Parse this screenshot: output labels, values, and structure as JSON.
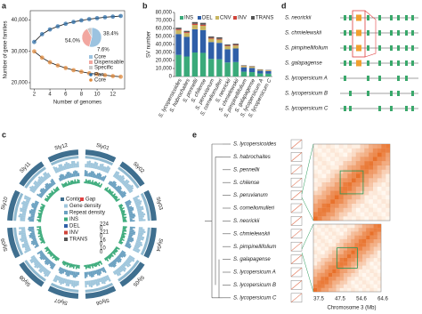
{
  "panel_labels": [
    "a",
    "b",
    "c",
    "d",
    "e"
  ],
  "chart_data": [
    {
      "type": "line",
      "x": [
        2,
        3,
        4,
        5,
        6,
        7,
        8,
        9,
        10,
        11,
        12,
        13
      ],
      "series": [
        {
          "name": "Pan",
          "color": "#2f6fa8",
          "values": [
            33000,
            35500,
            37000,
            38000,
            38800,
            39400,
            39900,
            40300,
            40600,
            40900,
            41100,
            41300
          ]
        },
        {
          "name": "Core",
          "color": "#e08a3c",
          "values": [
            30000,
            28000,
            26500,
            25500,
            24700,
            24000,
            23500,
            23000,
            22700,
            22400,
            22100,
            21900
          ]
        }
      ],
      "xlim": [
        1.5,
        13.5
      ],
      "xticks": [
        2,
        4,
        6,
        8,
        10,
        12
      ],
      "ylim": [
        18000,
        43000
      ],
      "yticks": [
        {
          "value": 20000,
          "label": "20,000"
        },
        {
          "value": 30000,
          "label": "30,000"
        },
        {
          "value": 40000,
          "label": "40,000"
        }
      ],
      "xlabel": "Number of genomes",
      "ylabel": "Number of gene families"
    },
    {
      "type": "pie",
      "categories": [
        "Core",
        "Dispensable",
        "Specific"
      ],
      "values": [
        54.0,
        38.4,
        7.6
      ],
      "value_labels": [
        "54.0%",
        "38.4%",
        "7.6%"
      ],
      "colors": [
        "#9cc3e0",
        "#f2a7a0",
        "#c9c9c9"
      ]
    },
    {
      "type": "bar",
      "stacked": true,
      "categories": [
        "S. lycopersicoides",
        "S. habrochaites",
        "S. pennellii",
        "S. chilense",
        "S. peruvianum",
        "S. corneliomulleri",
        "S. neorickii",
        "S. chmielewskii",
        "S. pimpinellifolium",
        "S. galapagense",
        "S. lycopersicum A",
        "S. lycopersicum C"
      ],
      "series": [
        {
          "name": "INS",
          "color": "#3aaa7a",
          "values": [
            27000,
            25000,
            30000,
            29500,
            22000,
            21500,
            17500,
            18000,
            6000,
            5500,
            3800,
            3500
          ]
        },
        {
          "name": "DEL",
          "color": "#2f5fa8",
          "values": [
            26000,
            24500,
            29000,
            28500,
            21000,
            20500,
            16500,
            17000,
            5500,
            5200,
            3500,
            3200
          ]
        },
        {
          "name": "CNV",
          "color": "#c8b560",
          "values": [
            5000,
            4800,
            5500,
            5400,
            4200,
            4100,
            3800,
            3700,
            1600,
            1500,
            1000,
            900
          ]
        },
        {
          "name": "INV",
          "color": "#d0443a",
          "values": [
            1200,
            1100,
            1400,
            1300,
            1000,
            900,
            800,
            800,
            300,
            300,
            200,
            200
          ]
        },
        {
          "name": "TRANS",
          "color": "#555555",
          "values": [
            1800,
            1600,
            2100,
            2300,
            1800,
            2000,
            1400,
            1500,
            600,
            500,
            500,
            400
          ]
        }
      ],
      "ylim": [
        0,
        80000
      ],
      "yticks": [
        0,
        {
          "value": 10000,
          "label": "10,000"
        },
        {
          "value": 20000,
          "label": "20,000"
        },
        {
          "value": 30000,
          "label": "30,000"
        },
        {
          "value": 40000,
          "label": "40,000"
        },
        {
          "value": 50000,
          "label": "50,000"
        },
        {
          "value": 60000,
          "label": "60,000"
        },
        {
          "value": 70000,
          "label": "70,000"
        },
        {
          "value": 80000,
          "label": "80,000"
        }
      ],
      "ylabel": "SV number"
    }
  ],
  "circos": {
    "chromosomes": [
      "Sly01",
      "Sly02",
      "Sly03",
      "Sly04",
      "Sly05",
      "Sly06",
      "Sly07",
      "Sly08",
      "Sly09",
      "Sly10",
      "Sly11",
      "Sly12"
    ],
    "legend": [
      "Contig",
      "Gap",
      "Gene density",
      "Repeat density",
      "INS",
      "DEL",
      "INV",
      "TRANS"
    ],
    "scales": [
      "224",
      "0",
      "221",
      "0",
      "16",
      "0",
      "10",
      "0"
    ]
  },
  "gene_structure": {
    "species": [
      "S. neorickii",
      "S. chmielewskii",
      "S. pimpinellifolium",
      "S. galapagense",
      "S. lycopersicum A",
      "S. lycopersicum B",
      "S. lycopersicum C"
    ]
  },
  "hic": {
    "species": [
      "S. lycopersicoides",
      "S. habrochaites",
      "S. pennellii",
      "S. chilense",
      "S. peruvianum",
      "S. corneliomulleri",
      "S. neorickii",
      "S. chmielewskii",
      "S. pimpinellifolium",
      "S. galapagense",
      "S. lycopersicum A",
      "S. lycopersicum B",
      "S. lycopersicum C"
    ],
    "xticks": [
      "37.5",
      "47.5",
      "54.6",
      "64.6"
    ],
    "xlabel": "Chromosome 3 (Mb)"
  }
}
